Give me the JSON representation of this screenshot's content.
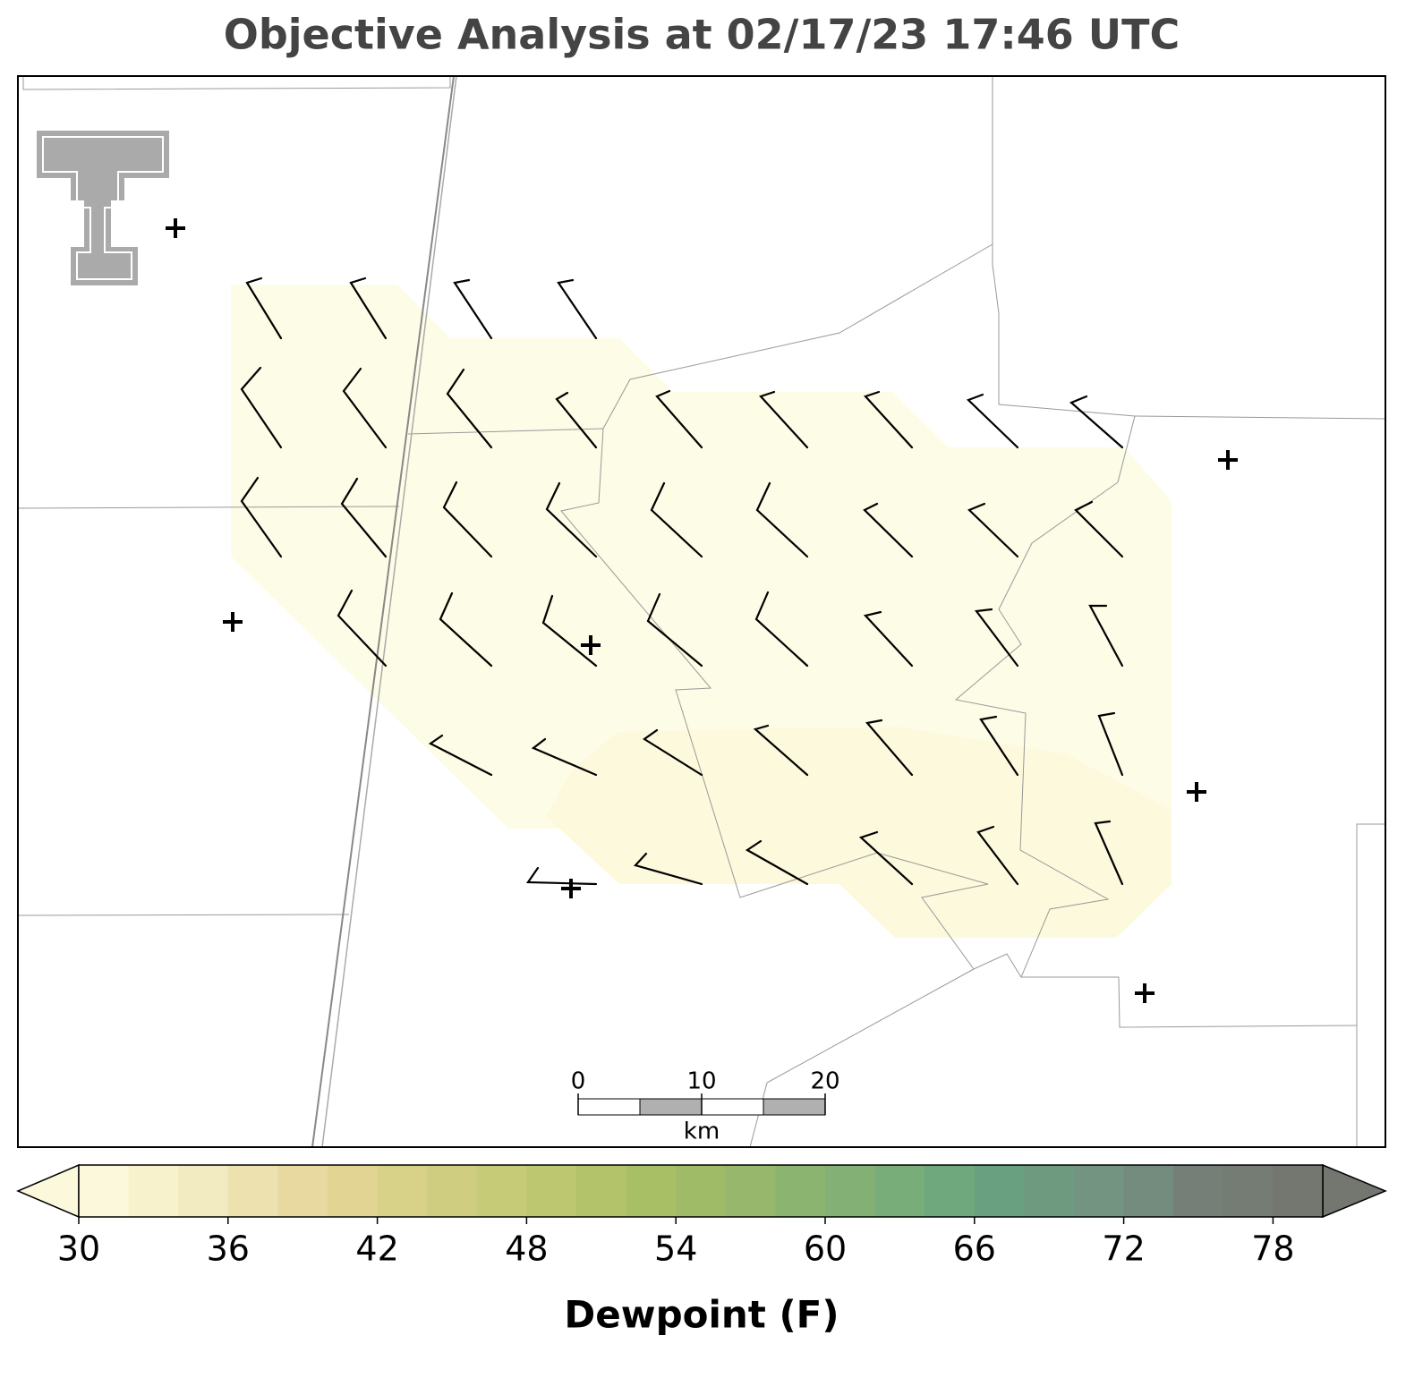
{
  "title": "Objective Analysis at 02/17/23 17:46 UTC",
  "scale_bar": {
    "ticks": [
      0,
      10,
      20
    ],
    "unit": "km"
  },
  "colorbar": {
    "label": "Dewpoint (F)",
    "lim": [
      30,
      80
    ],
    "ticks": [
      30,
      36,
      42,
      48,
      54,
      60,
      66,
      72,
      78
    ],
    "colors": [
      "#fbf8dc",
      "#f7f2cc",
      "#f2eac0",
      "#ede1b0",
      "#e7d9a0",
      "#e2d594",
      "#d8d288",
      "#cfce80",
      "#c6cb78",
      "#bcc770",
      "#b2c36a",
      "#a8bf66",
      "#9fbb68",
      "#96b76c",
      "#8cb471",
      "#82b075",
      "#78ac79",
      "#6fa87d",
      "#69a080",
      "#6e9a80",
      "#729480",
      "#748c7e",
      "#757f78",
      "#747c74",
      "#737770"
    ]
  }
}
